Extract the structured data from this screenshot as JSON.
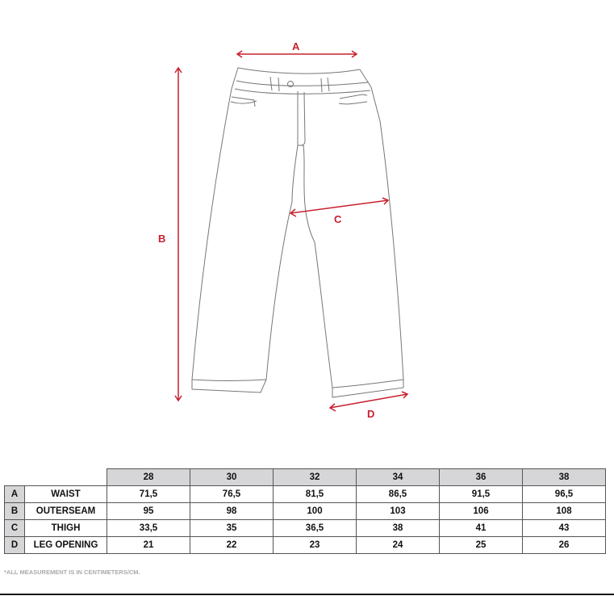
{
  "diagram": {
    "labels": {
      "A": "A",
      "B": "B",
      "C": "C",
      "D": "D"
    },
    "accent_color": "#c8202e"
  },
  "table": {
    "sizes": [
      "28",
      "30",
      "32",
      "34",
      "36",
      "38"
    ],
    "rows": [
      {
        "letter": "A",
        "name": "WAIST",
        "values": [
          "71,5",
          "76,5",
          "81,5",
          "86,5",
          "91,5",
          "96,5"
        ]
      },
      {
        "letter": "B",
        "name": "OUTERSEAM",
        "values": [
          "95",
          "98",
          "100",
          "103",
          "106",
          "108"
        ]
      },
      {
        "letter": "C",
        "name": "THIGH",
        "values": [
          "33,5",
          "35",
          "36,5",
          "38",
          "41",
          "43"
        ]
      },
      {
        "letter": "D",
        "name": "LEG OPENING",
        "values": [
          "21",
          "22",
          "23",
          "24",
          "25",
          "26"
        ]
      }
    ]
  },
  "footnote": "*ALL MEASUREMENT IS IN CENTIMETERS/CM."
}
